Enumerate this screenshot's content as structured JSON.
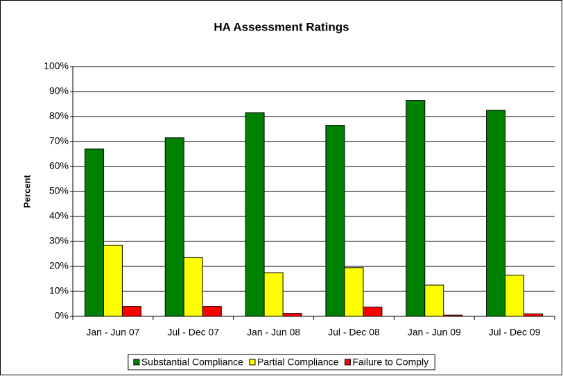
{
  "chart_data": {
    "type": "bar",
    "title": "HA Assessment Ratings",
    "y_label": "Percent",
    "categories": [
      "Jan - Jun 07",
      "Jul - Dec 07",
      "Jan - Jun 08",
      "Jul - Dec 08",
      "Jan - Jun 09",
      "Jul - Dec 09"
    ],
    "series": [
      {
        "name": "Substantial Compliance",
        "color": "#008000",
        "values": [
          67,
          71.5,
          81.5,
          76.5,
          86.5,
          82.5
        ]
      },
      {
        "name": "Partial Compliance",
        "color": "#ffff00",
        "values": [
          28.5,
          23.5,
          17.5,
          19.5,
          12.5,
          16.5
        ]
      },
      {
        "name": "Failure to Comply",
        "color": "#ff0000",
        "values": [
          4,
          4,
          1.2,
          3.7,
          0.5,
          1
        ]
      }
    ],
    "ylim": [
      0,
      100
    ],
    "yticks": [
      {
        "value": 0,
        "label": "0%"
      },
      {
        "value": 10,
        "label": "10%"
      },
      {
        "value": 20,
        "label": "20%"
      },
      {
        "value": 30,
        "label": "30%"
      },
      {
        "value": 40,
        "label": "40%"
      },
      {
        "value": 50,
        "label": "50%"
      },
      {
        "value": 60,
        "label": "60%"
      },
      {
        "value": 70,
        "label": "70%"
      },
      {
        "value": 80,
        "label": "80%"
      },
      {
        "value": 90,
        "label": "90%"
      },
      {
        "value": 100,
        "label": "100%"
      }
    ],
    "grid": true,
    "legend": "bottom"
  }
}
